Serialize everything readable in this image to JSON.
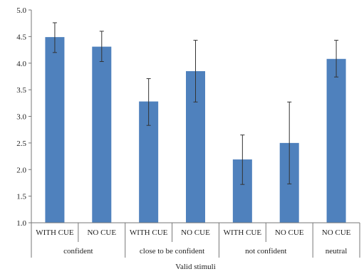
{
  "chart_data": {
    "type": "bar",
    "title": "",
    "xlabel": "Valid stimuli",
    "ylabel": "",
    "ylim": [
      1.0,
      5.0
    ],
    "yticks": [
      "1.0",
      "1.5",
      "2.0",
      "2.5",
      "3.0",
      "3.5",
      "4.0",
      "4.5",
      "5.0"
    ],
    "grid": false,
    "legend": "none",
    "bar_color": "#4F81BD",
    "error_bar_color": "#333333",
    "categories": [
      "WITH CUE",
      "NO CUE",
      "WITH CUE",
      "NO CUE",
      "WITH CUE",
      "NO CUE",
      "NO CUE"
    ],
    "groups": [
      {
        "label": "confident",
        "span": 2
      },
      {
        "label": "close to be confident",
        "span": 2
      },
      {
        "label": "not confident",
        "span": 2
      },
      {
        "label": "neutral",
        "span": 1
      }
    ],
    "values": [
      4.49,
      4.31,
      3.28,
      3.85,
      2.19,
      2.5,
      4.08
    ],
    "error_low": [
      4.2,
      4.03,
      2.83,
      3.27,
      1.72,
      1.73,
      3.74
    ],
    "error_high": [
      4.76,
      4.6,
      3.71,
      4.43,
      2.65,
      3.27,
      4.43
    ]
  }
}
